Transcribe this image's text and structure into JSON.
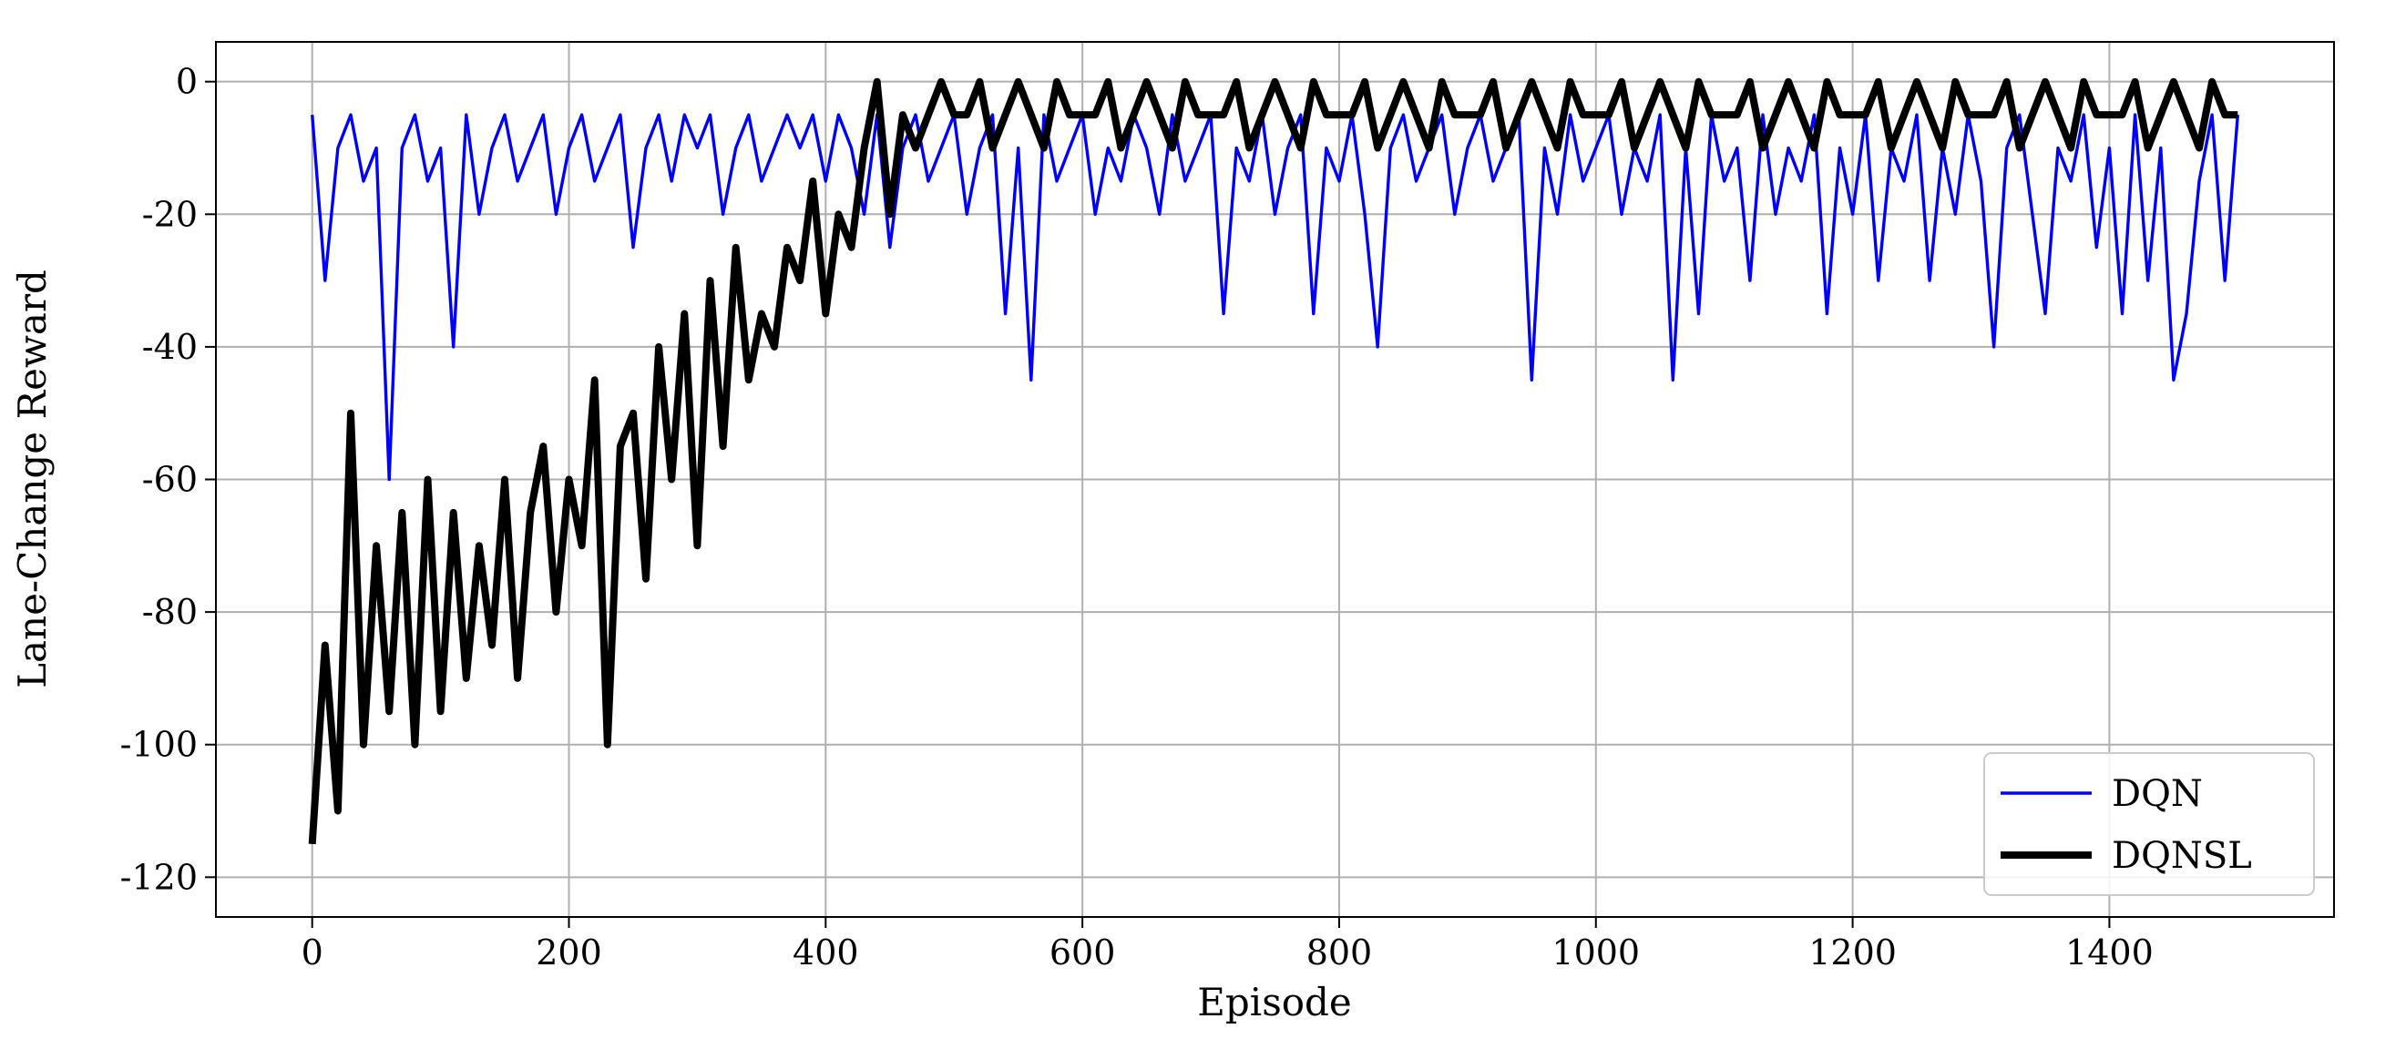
{
  "chart_data": {
    "type": "line",
    "xlabel": "Episode",
    "ylabel": "Lane-Change Reward",
    "xlim": [
      -75,
      1575
    ],
    "ylim": [
      -126,
      6
    ],
    "xticks": [
      0,
      200,
      400,
      600,
      800,
      1000,
      1200,
      1400
    ],
    "yticks": [
      -120,
      -100,
      -80,
      -60,
      -40,
      -20,
      0
    ],
    "grid": true,
    "legend": "lower right",
    "x": [
      0,
      10,
      20,
      30,
      40,
      50,
      60,
      70,
      80,
      90,
      100,
      110,
      120,
      130,
      140,
      150,
      160,
      170,
      180,
      190,
      200,
      210,
      220,
      230,
      240,
      250,
      260,
      270,
      280,
      290,
      300,
      310,
      320,
      330,
      340,
      350,
      360,
      370,
      380,
      390,
      400,
      410,
      420,
      430,
      440,
      450,
      460,
      470,
      480,
      490,
      500,
      510,
      520,
      530,
      540,
      550,
      560,
      570,
      580,
      590,
      600,
      610,
      620,
      630,
      640,
      650,
      660,
      670,
      680,
      690,
      700,
      710,
      720,
      730,
      740,
      750,
      760,
      770,
      780,
      790,
      800,
      810,
      820,
      830,
      840,
      850,
      860,
      870,
      880,
      890,
      900,
      910,
      920,
      930,
      940,
      950,
      960,
      970,
      980,
      990,
      1000,
      1010,
      1020,
      1030,
      1040,
      1050,
      1060,
      1070,
      1080,
      1090,
      1100,
      1110,
      1120,
      1130,
      1140,
      1150,
      1160,
      1170,
      1180,
      1190,
      1200,
      1210,
      1220,
      1230,
      1240,
      1250,
      1260,
      1270,
      1280,
      1290,
      1300,
      1310,
      1320,
      1330,
      1340,
      1350,
      1360,
      1370,
      1380,
      1390,
      1400,
      1410,
      1420,
      1430,
      1440,
      1450,
      1460,
      1470,
      1480,
      1490,
      1500
    ],
    "series": [
      {
        "name": "DQN",
        "color": "#0000ff",
        "linewidth": 3.4,
        "values": [
          -5,
          -30,
          -10,
          -5,
          -15,
          -10,
          -60,
          -10,
          -5,
          -15,
          -10,
          -40,
          -5,
          -20,
          -10,
          -5,
          -15,
          -10,
          -5,
          -20,
          -10,
          -5,
          -15,
          -10,
          -5,
          -25,
          -10,
          -5,
          -15,
          -5,
          -10,
          -5,
          -20,
          -10,
          -5,
          -15,
          -10,
          -5,
          -10,
          -5,
          -15,
          -5,
          -10,
          -20,
          -5,
          -25,
          -10,
          -5,
          -15,
          -10,
          -5,
          -20,
          -10,
          -5,
          -35,
          -10,
          -45,
          -5,
          -15,
          -10,
          -5,
          -20,
          -10,
          -15,
          -5,
          -10,
          -20,
          -5,
          -15,
          -10,
          -5,
          -35,
          -10,
          -15,
          -5,
          -20,
          -10,
          -5,
          -35,
          -10,
          -15,
          -5,
          -20,
          -40,
          -10,
          -5,
          -15,
          -10,
          -5,
          -20,
          -10,
          -5,
          -15,
          -10,
          -5,
          -45,
          -10,
          -20,
          -5,
          -15,
          -10,
          -5,
          -20,
          -10,
          -15,
          -5,
          -45,
          -10,
          -35,
          -5,
          -15,
          -10,
          -30,
          -5,
          -20,
          -10,
          -15,
          -5,
          -35,
          -10,
          -20,
          -5,
          -30,
          -10,
          -15,
          -5,
          -30,
          -10,
          -20,
          -5,
          -15,
          -40,
          -10,
          -5,
          -20,
          -35,
          -10,
          -15,
          -5,
          -25,
          -10,
          -35,
          -5,
          -30,
          -10,
          -45,
          -35,
          -15,
          -5,
          -30,
          -5
        ]
      },
      {
        "name": "DQNSL",
        "color": "#000000",
        "linewidth": 8,
        "values": [
          -115,
          -85,
          -110,
          -50,
          -100,
          -70,
          -95,
          -65,
          -100,
          -60,
          -95,
          -65,
          -90,
          -70,
          -85,
          -60,
          -90,
          -65,
          -55,
          -80,
          -60,
          -70,
          -45,
          -100,
          -55,
          -50,
          -75,
          -40,
          -60,
          -35,
          -70,
          -30,
          -55,
          -25,
          -45,
          -35,
          -40,
          -25,
          -30,
          -15,
          -35,
          -20,
          -25,
          -10,
          0,
          -20,
          -5,
          -10,
          -5,
          0,
          -5,
          -5,
          0,
          -10,
          -5,
          0,
          -5,
          -10,
          0,
          -5,
          -5,
          -5,
          0,
          -10,
          -5,
          0,
          -5,
          -10,
          0,
          -5,
          -5,
          -5,
          0,
          -10,
          -5,
          0,
          -5,
          -10,
          0,
          -5,
          -5,
          -5,
          0,
          -10,
          -5,
          0,
          -5,
          -10,
          0,
          -5,
          -5,
          -5,
          0,
          -10,
          -5,
          0,
          -5,
          -10,
          0,
          -5,
          -5,
          -5,
          0,
          -10,
          -5,
          0,
          -5,
          -10,
          0,
          -5,
          -5,
          -5,
          0,
          -10,
          -5,
          0,
          -5,
          -10,
          0,
          -5,
          -5,
          -5,
          0,
          -10,
          -5,
          0,
          -5,
          -10,
          0,
          -5,
          -5,
          -5,
          0,
          -10,
          -5,
          0,
          -5,
          -10,
          0,
          -5,
          -5,
          -5,
          0,
          -10,
          -5,
          0,
          -5,
          -10,
          0,
          -5,
          -5
        ]
      }
    ]
  }
}
